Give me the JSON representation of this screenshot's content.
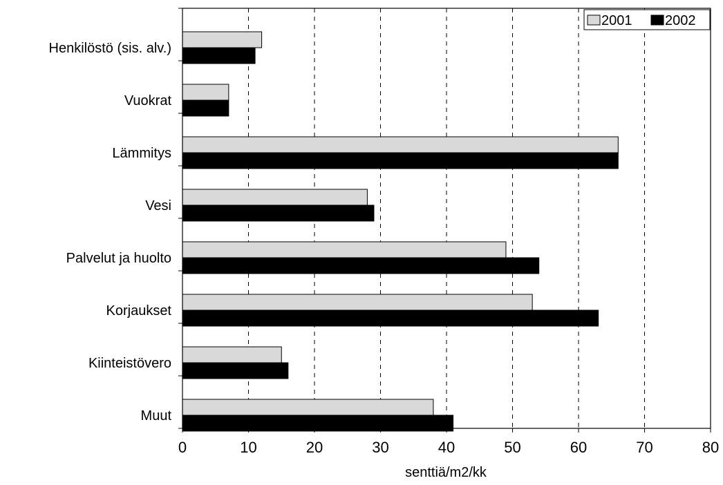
{
  "chart_data": {
    "type": "bar",
    "orientation": "horizontal",
    "categories": [
      "Henkilöstö (sis. alv.)",
      "Vuokrat",
      "Lämmitys",
      "Vesi",
      "Palvelut ja huolto",
      "Korjaukset",
      "Kiinteistövero",
      "Muut"
    ],
    "series": [
      {
        "name": "2001",
        "color": "#d9d9d9",
        "values": [
          12,
          7,
          66,
          28,
          49,
          53,
          15,
          38
        ]
      },
      {
        "name": "2002",
        "color": "#000000",
        "values": [
          11,
          7,
          66,
          29,
          54,
          63,
          16,
          41
        ]
      }
    ],
    "xlabel": "senttiä/m2/kk",
    "ylabel": "",
    "title": "",
    "xlim": [
      0,
      80
    ],
    "xticks": [
      0,
      10,
      20,
      30,
      40,
      50,
      60,
      70,
      80
    ],
    "grid": "vertical dashed",
    "legend_position": "top-right"
  }
}
